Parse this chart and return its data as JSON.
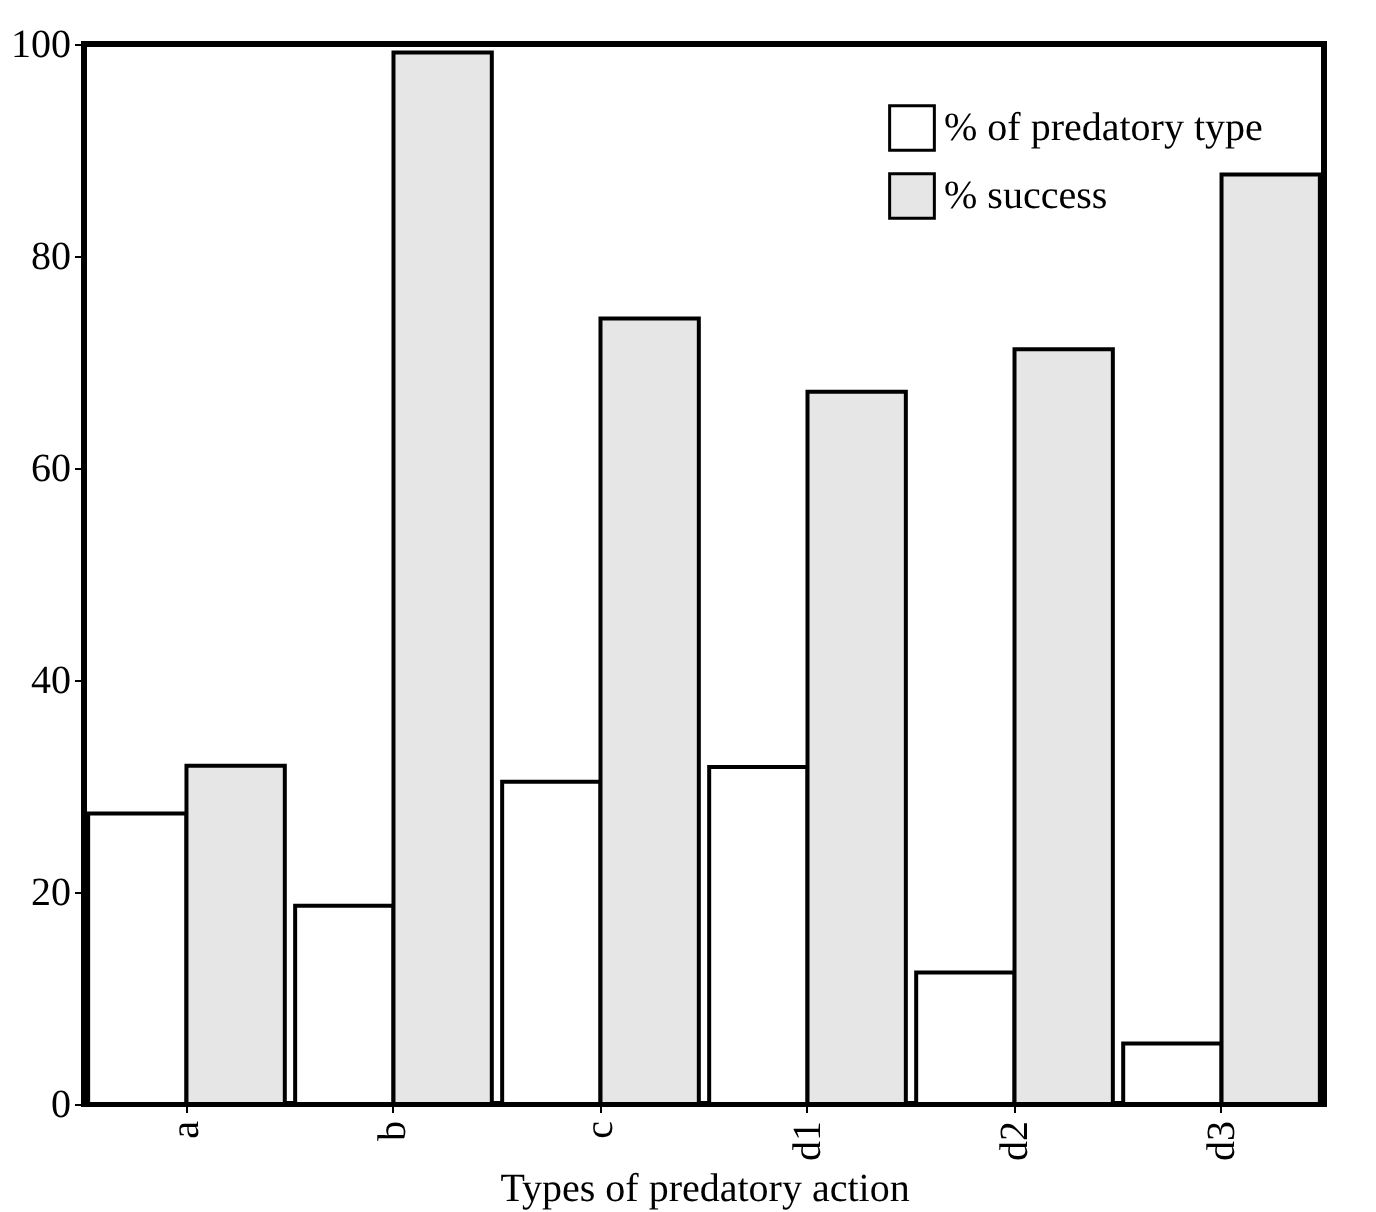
{
  "chart_data": {
    "type": "bar",
    "xlabel": "Types of predatory action",
    "categories": [
      "a",
      "b",
      "c",
      "d1",
      "d2",
      "d3"
    ],
    "series": [
      {
        "name": "% of predatory type",
        "color": "#ffffff",
        "values": [
          27.4,
          18.7,
          30.4,
          31.8,
          12.4,
          5.7
        ]
      },
      {
        "name": "% success",
        "color": "#e6e6e6",
        "values": [
          31.9,
          99.2,
          74.1,
          67.2,
          71.2,
          87.7
        ]
      }
    ],
    "ylim": [
      0,
      100
    ],
    "yticks": [
      0,
      20,
      40,
      60,
      80,
      100
    ],
    "grid": false,
    "legend": "top right"
  }
}
